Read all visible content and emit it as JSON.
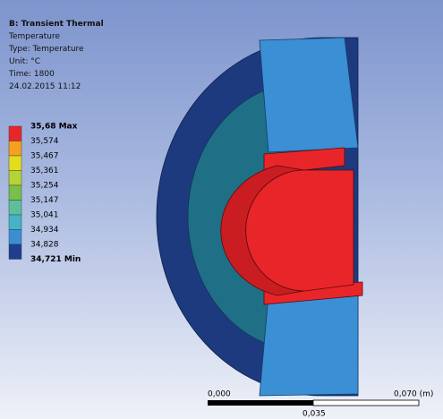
{
  "header": {
    "title": "B: Transient Thermal",
    "lines": [
      "Temperature",
      "Type: Temperature",
      "Unit: °C",
      "Time: 1800",
      "24.02.2015 11:12"
    ]
  },
  "legend": {
    "items": [
      {
        "label": "35,68 Max",
        "color": "#e8262a"
      },
      {
        "label": "35,574",
        "color": "#f5a01e"
      },
      {
        "label": "35,467",
        "color": "#e5dc1c"
      },
      {
        "label": "35,361",
        "color": "#b4d334"
      },
      {
        "label": "35,254",
        "color": "#79c04a"
      },
      {
        "label": "35,147",
        "color": "#5cbf9a"
      },
      {
        "label": "35,041",
        "color": "#44b3c8"
      },
      {
        "label": "34,934",
        "color": "#3a8fd4"
      },
      {
        "label": "34,828",
        "color": "#1f3f8e"
      },
      {
        "label": "34,721 Min",
        "color": null
      }
    ]
  },
  "scale_bar": {
    "start": "0,000",
    "end": "0,070 (m)",
    "middle": "0,035"
  }
}
